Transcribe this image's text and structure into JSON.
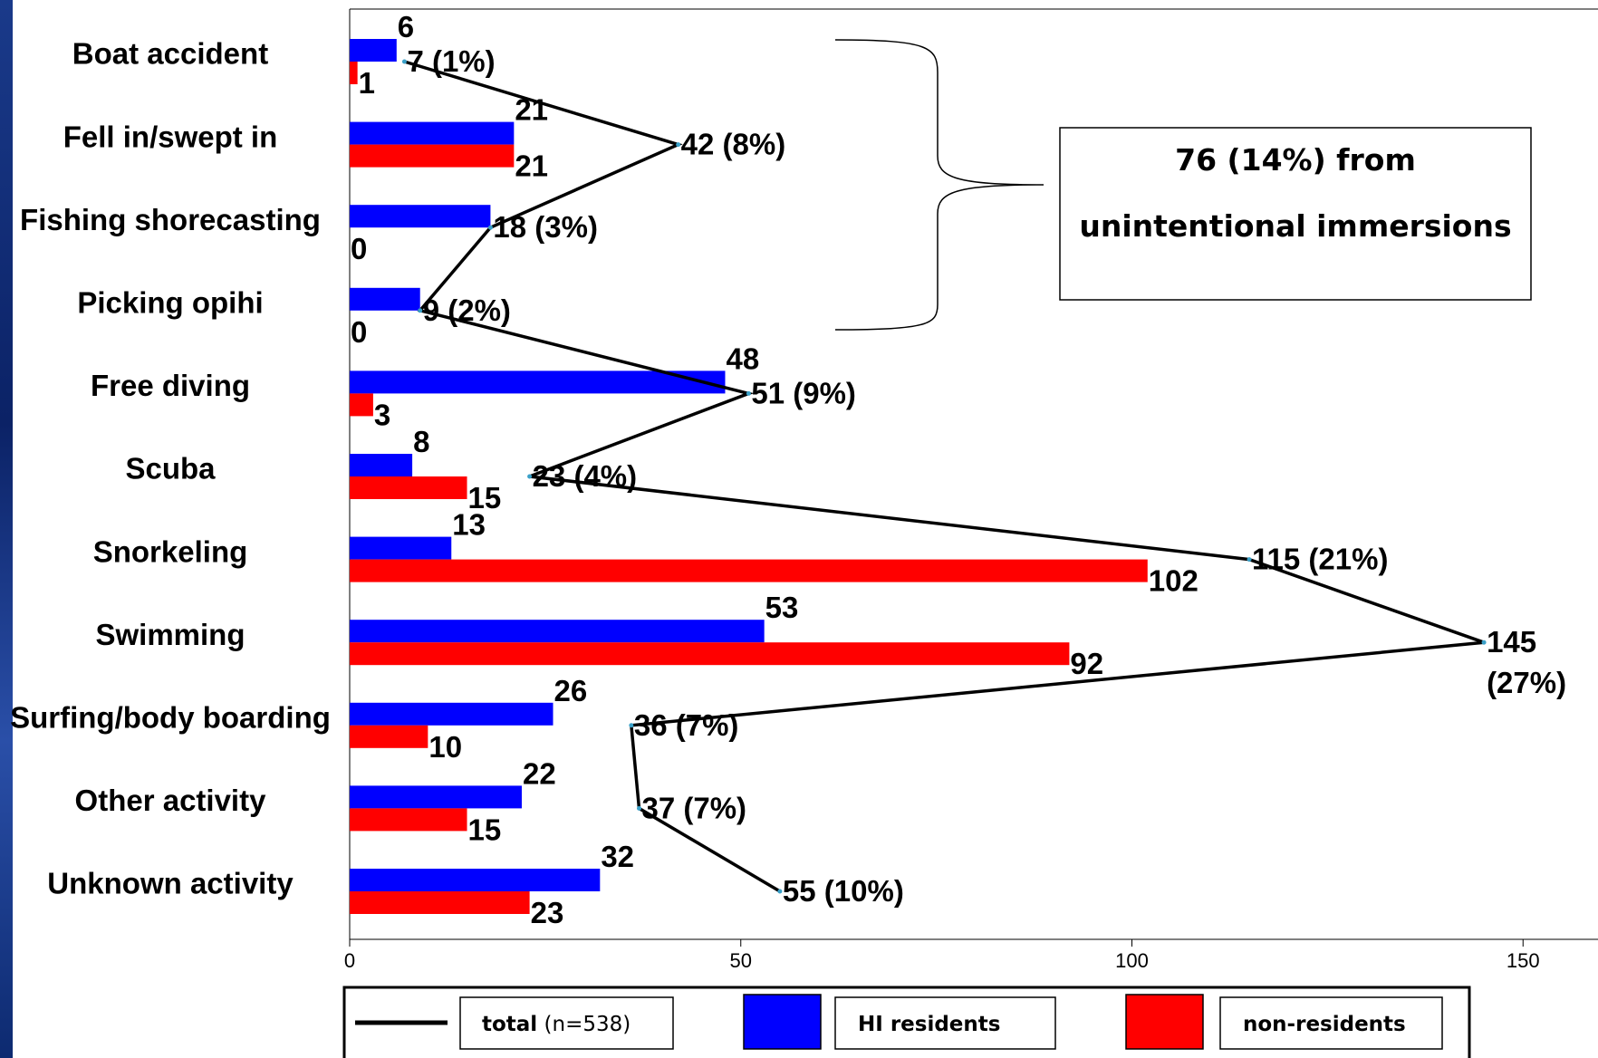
{
  "chart_data": {
    "type": "bar",
    "orientation": "horizontal",
    "categories": [
      "Boat accident",
      "Fell in/swept in",
      "Fishing shorecasting",
      "Picking opihi",
      "Free diving",
      "Scuba",
      "Snorkeling",
      "Swimming",
      "Surfing/body boarding",
      "Other activity",
      "Unknown activity"
    ],
    "series": [
      {
        "name": "HI residents",
        "color": "#0000ff",
        "values": [
          6,
          21,
          18,
          9,
          48,
          8,
          13,
          53,
          26,
          22,
          32
        ],
        "labels": [
          "6",
          "21",
          "",
          "",
          "48",
          "8",
          "13",
          "53",
          "26",
          "22",
          "32"
        ]
      },
      {
        "name": "non-residents",
        "color": "#ff0000",
        "values": [
          1,
          21,
          0,
          0,
          3,
          15,
          102,
          92,
          10,
          15,
          23
        ],
        "labels": [
          "1",
          "21",
          "0",
          "0",
          "3",
          "15",
          "102",
          "92",
          "10",
          "15",
          "23"
        ]
      }
    ],
    "total_line": {
      "name": "total",
      "name_suffix": "(n=538)",
      "color": "#000000",
      "values": [
        7,
        42,
        18,
        9,
        51,
        23,
        115,
        145,
        36,
        37,
        55
      ],
      "labels": [
        "7 (1%)",
        "42 (8%)",
        "18 (3%)",
        "9 (2%)",
        "51 (9%)",
        "23 (4%)",
        "115 (21%)",
        "145",
        "36 (7%)",
        "37 (7%)",
        "55 (10%)"
      ],
      "label_second_line": [
        "",
        "",
        "",
        "",
        "",
        "",
        "",
        "(27%)",
        "",
        "",
        ""
      ]
    },
    "xlim": [
      0,
      160
    ],
    "xticks": [
      0,
      50,
      100,
      150
    ],
    "xtick_labels": [
      "0",
      "50",
      "100",
      "150"
    ],
    "grid": false,
    "legend_position": "bottom",
    "callout": {
      "line1": "76 (14%) from",
      "line2": "unintentional immersions"
    }
  }
}
